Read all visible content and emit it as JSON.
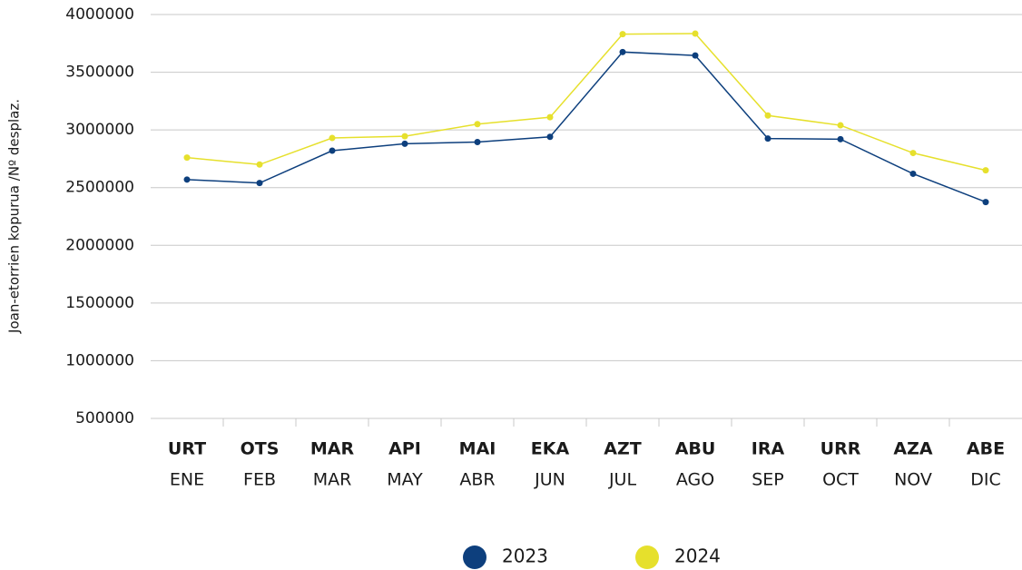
{
  "chart_data": {
    "type": "line",
    "ylabel": "Joan-etorrien kopurua /Nº desplaz.",
    "categories": [
      "URT",
      "OTS",
      "MAR",
      "API",
      "MAI",
      "EKA",
      "AZT",
      "ABU",
      "IRA",
      "URR",
      "AZA",
      "ABE"
    ],
    "subcategories": [
      "ENE",
      "FEB",
      "MAR",
      "MAY",
      "ABR",
      "JUN",
      "JUL",
      "AGO",
      "SEP",
      "OCT",
      "NOV",
      "DIC"
    ],
    "series": [
      {
        "name": "2023",
        "color": "#0d3f7d",
        "values": [
          2570000,
          2540000,
          2820000,
          2880000,
          2895000,
          2940000,
          3675000,
          3645000,
          2925000,
          2920000,
          2620000,
          2375000
        ]
      },
      {
        "name": "2024",
        "color": "#e6e02c",
        "values": [
          2760000,
          2700000,
          2930000,
          2945000,
          3050000,
          3110000,
          3830000,
          3835000,
          3125000,
          3040000,
          2800000,
          2650000
        ]
      }
    ],
    "ylim": [
      500000,
      4000000
    ],
    "yticks": [
      500000,
      1000000,
      1500000,
      2000000,
      2500000,
      3000000,
      3500000,
      4000000
    ],
    "grid": true
  }
}
